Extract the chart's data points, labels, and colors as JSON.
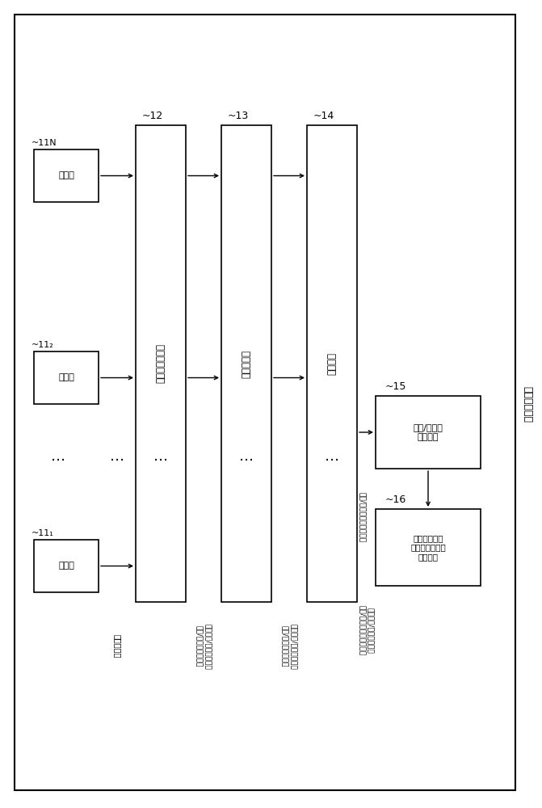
{
  "bg_color": "#ffffff",
  "page_title": "行程控制设备",
  "sensor_label": "传感器",
  "box12_label": "可能性计算单元",
  "box12_ref": "~12",
  "box13_label": "规范化单元",
  "box13_ref": "~13",
  "box14_label": "整合单元",
  "box14_ref": "~14",
  "box15_label": "距离/移动量\n计算单元",
  "box15_ref": "~15",
  "box16_label": "行程控制单元\n（先进驾驶者辅\n助系统）",
  "box16_ref": "~16",
  "label_sensor_data": "传感器数据",
  "label_prob1": "多个距离/移动量的每个\n距离/移动量的可能性",
  "label_prob2": "多个距离/移动量的每个\n距离/移动量的可能性",
  "label_combined": "多个距离/移动量的每个\n距离/移动量的整合可能性",
  "label_dist_above": "多个距离/移动量的每个距离/移动量的整合可能性",
  "label_dist_below": "距离/移动量的\n距离/移动量",
  "ref_11N": "~11N",
  "ref_112": "~11₂",
  "ref_111": "~11₁"
}
